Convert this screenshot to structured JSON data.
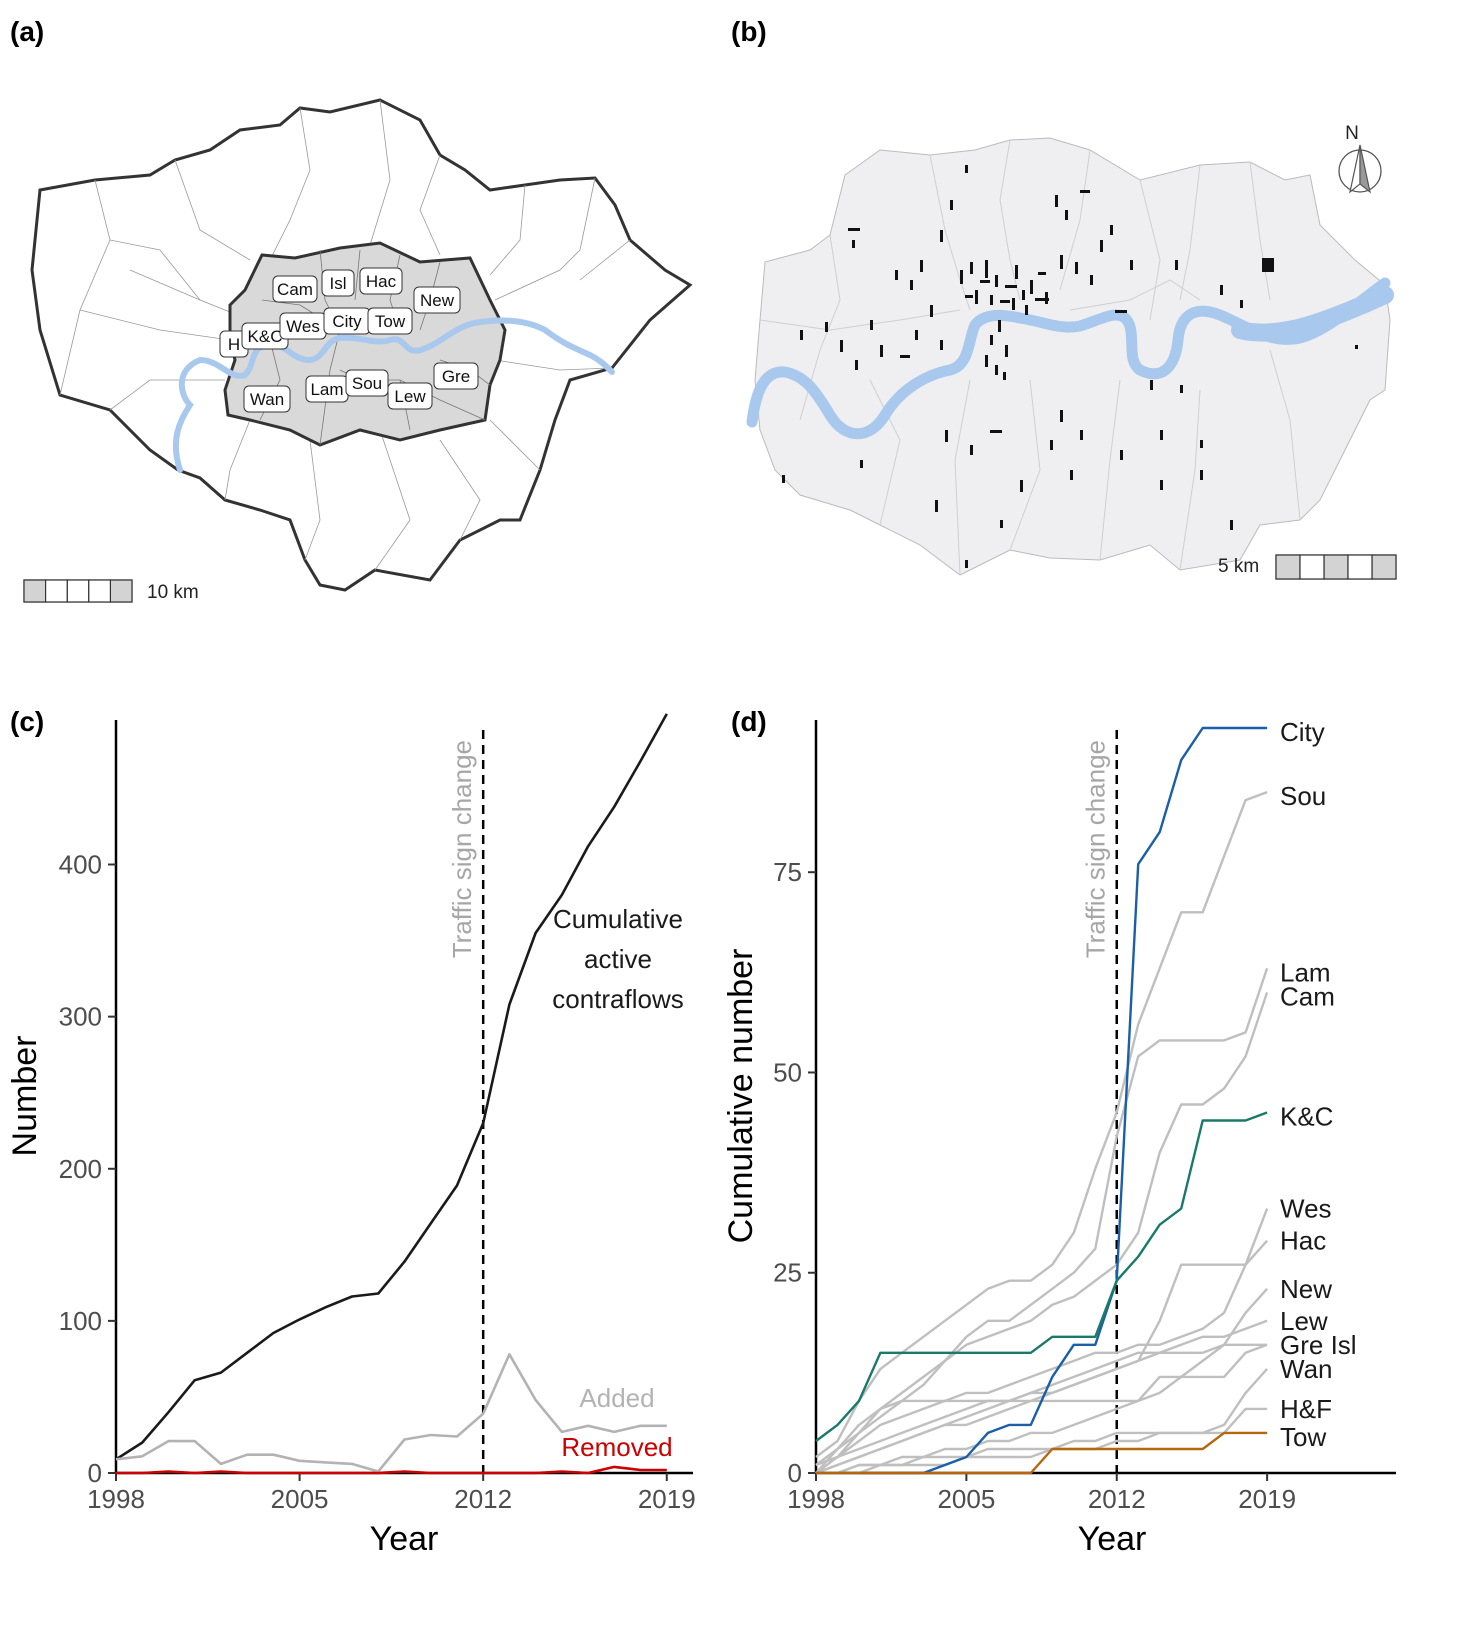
{
  "panels": {
    "a": "(a)",
    "b": "(b)",
    "c": "(c)",
    "d": "(d)"
  },
  "map_a": {
    "borough_labels": [
      "Cam",
      "Isl",
      "Hac",
      "New",
      "K&C",
      "Wes",
      "City",
      "Tow",
      "H",
      "Wan",
      "Lam",
      "Sou",
      "Lew",
      "Gre"
    ],
    "scale_text": "10 km",
    "colors": {
      "inner": "#d9d9d9",
      "outer": "#ffffff",
      "river": "#a9c8ee",
      "border": "#333333"
    }
  },
  "map_b": {
    "north_label": "N",
    "scale_text": "5 km",
    "colors": {
      "land": "#efeff1",
      "river": "#a9c8ee",
      "contraflow": "#111111"
    }
  },
  "chart_data": [
    {
      "type": "line",
      "panel": "c",
      "xlabel": "Year",
      "ylabel": "Number",
      "xlim": [
        1998,
        2020
      ],
      "ylim": [
        0,
        495
      ],
      "xticks": [
        1998,
        2005,
        2012,
        2019
      ],
      "yticks": [
        0,
        100,
        200,
        300,
        400
      ],
      "vline": {
        "x": 2012,
        "label": "Traffic sign change",
        "style": "dashed"
      },
      "series": [
        {
          "name": "Cumulative active contraflows",
          "label_lines": [
            "Cumulative",
            "active",
            "contraflows"
          ],
          "color": "#1a1a1a",
          "x": [
            1998,
            1999,
            2000,
            2001,
            2002,
            2003,
            2004,
            2005,
            2006,
            2007,
            2008,
            2009,
            2010,
            2011,
            2012,
            2013,
            2014,
            2015,
            2016,
            2017,
            2018,
            2019
          ],
          "y": [
            9,
            20,
            40,
            61,
            66,
            79,
            92,
            101,
            109,
            116,
            118,
            139,
            164,
            189,
            230,
            308,
            355,
            380,
            412,
            438,
            468,
            499
          ]
        },
        {
          "name": "Added",
          "color": "#b3b3b3",
          "x": [
            1998,
            1999,
            2000,
            2001,
            2002,
            2003,
            2004,
            2005,
            2006,
            2007,
            2008,
            2009,
            2010,
            2011,
            2012,
            2013,
            2014,
            2015,
            2016,
            2017,
            2018,
            2019
          ],
          "y": [
            9,
            11,
            21,
            21,
            6,
            12,
            12,
            8,
            7,
            6,
            1,
            22,
            25,
            24,
            39,
            78,
            48,
            27,
            31,
            27,
            31,
            31
          ]
        },
        {
          "name": "Removed",
          "color": "#cc0000",
          "x": [
            1998,
            1999,
            2000,
            2001,
            2002,
            2003,
            2004,
            2005,
            2006,
            2007,
            2008,
            2009,
            2010,
            2011,
            2012,
            2013,
            2014,
            2015,
            2016,
            2017,
            2018,
            2019
          ],
          "y": [
            0,
            0,
            1,
            0,
            1,
            0,
            0,
            0,
            0,
            0,
            0,
            1,
            0,
            0,
            0,
            0,
            0,
            1,
            0,
            4,
            2,
            2
          ]
        }
      ]
    },
    {
      "type": "line",
      "panel": "d",
      "xlabel": "Year",
      "ylabel": "Cumulative number",
      "xlim": [
        1998,
        2025
      ],
      "ylim": [
        0,
        94
      ],
      "xticks": [
        1998,
        2005,
        2012,
        2019
      ],
      "yticks": [
        0,
        25,
        50,
        75
      ],
      "vline": {
        "x": 2012,
        "label": "Traffic sign change",
        "style": "dashed"
      },
      "series": [
        {
          "name": "Sou",
          "color": "#bfbfbf",
          "label_y": 84.5,
          "x": [
            1998,
            1999,
            2000,
            2001,
            2002,
            2003,
            2004,
            2005,
            2006,
            2007,
            2008,
            2009,
            2010,
            2011,
            2012,
            2013,
            2014,
            2015,
            2016,
            2017,
            2018,
            2019
          ],
          "y": [
            2,
            4,
            9,
            13,
            15,
            17,
            19,
            21,
            23,
            24,
            24,
            26,
            30,
            38,
            45,
            56,
            63,
            70,
            70,
            77,
            84,
            85
          ]
        },
        {
          "name": "Lam",
          "color": "#bfbfbf",
          "label_y": 62.5,
          "x": [
            1998,
            1999,
            2000,
            2001,
            2002,
            2003,
            2004,
            2005,
            2006,
            2007,
            2008,
            2009,
            2010,
            2011,
            2012,
            2013,
            2014,
            2015,
            2016,
            2017,
            2018,
            2019
          ],
          "y": [
            0,
            2,
            5,
            7,
            9,
            11,
            14,
            17,
            19,
            19,
            21,
            23,
            25,
            28,
            42,
            52,
            54,
            54,
            54,
            54,
            55,
            63
          ]
        },
        {
          "name": "Cam",
          "color": "#bfbfbf",
          "label_y": 59.5,
          "x": [
            1998,
            1999,
            2000,
            2001,
            2002,
            2003,
            2004,
            2005,
            2006,
            2007,
            2008,
            2009,
            2010,
            2011,
            2012,
            2013,
            2014,
            2015,
            2016,
            2017,
            2018,
            2019
          ],
          "y": [
            1,
            3,
            5,
            8,
            10,
            12,
            14,
            16,
            17,
            18,
            19,
            21,
            22,
            24,
            26,
            30,
            40,
            46,
            46,
            48,
            52,
            60
          ]
        },
        {
          "name": "Wes",
          "color": "#bfbfbf",
          "label_y": 33,
          "x": [
            1998,
            1999,
            2000,
            2001,
            2002,
            2003,
            2004,
            2005,
            2006,
            2007,
            2008,
            2009,
            2010,
            2011,
            2012,
            2013,
            2014,
            2015,
            2016,
            2017,
            2018,
            2019
          ],
          "y": [
            1,
            2,
            4,
            6,
            7,
            8,
            9,
            10,
            10,
            11,
            12,
            13,
            14,
            15,
            15,
            16,
            16,
            17,
            18,
            20,
            26,
            33
          ]
        },
        {
          "name": "Hac",
          "color": "#bfbfbf",
          "label_y": 29,
          "x": [
            1998,
            1999,
            2000,
            2001,
            2002,
            2003,
            2004,
            2005,
            2006,
            2007,
            2008,
            2009,
            2010,
            2011,
            2012,
            2013,
            2014,
            2015,
            2016,
            2017,
            2018,
            2019
          ],
          "y": [
            0,
            1,
            2,
            3,
            4,
            5,
            6,
            6,
            7,
            8,
            9,
            10,
            11,
            12,
            13,
            14,
            19,
            26,
            26,
            26,
            26,
            29
          ]
        },
        {
          "name": "New",
          "color": "#bfbfbf",
          "label_y": 23,
          "x": [
            1998,
            1999,
            2000,
            2001,
            2002,
            2003,
            2004,
            2005,
            2006,
            2007,
            2008,
            2009,
            2010,
            2011,
            2012,
            2013,
            2014,
            2015,
            2016,
            2017,
            2018,
            2019
          ],
          "y": [
            0,
            0,
            1,
            1,
            2,
            2,
            3,
            3,
            4,
            4,
            5,
            5,
            6,
            7,
            8,
            9,
            10,
            12,
            14,
            16,
            20,
            23
          ]
        },
        {
          "name": "Lew",
          "color": "#bfbfbf",
          "label_y": 19,
          "x": [
            1998,
            1999,
            2000,
            2001,
            2002,
            2003,
            2004,
            2005,
            2006,
            2007,
            2008,
            2009,
            2010,
            2011,
            2012,
            2013,
            2014,
            2015,
            2016,
            2017,
            2018,
            2019
          ],
          "y": [
            1,
            2,
            3,
            4,
            5,
            6,
            7,
            8,
            9,
            9,
            10,
            10,
            11,
            12,
            13,
            14,
            15,
            16,
            17,
            17,
            18,
            19
          ]
        },
        {
          "name": "Gre",
          "color": "#bfbfbf",
          "label_y": 16,
          "x": [
            1998,
            1999,
            2000,
            2001,
            2002,
            2003,
            2004,
            2005,
            2006,
            2007,
            2008,
            2009,
            2010,
            2011,
            2012,
            2013,
            2014,
            2015,
            2016,
            2017,
            2018,
            2019
          ],
          "y": [
            0,
            1,
            2,
            3,
            4,
            5,
            6,
            7,
            8,
            9,
            10,
            11,
            12,
            13,
            14,
            15,
            15,
            15,
            15,
            16,
            16,
            16
          ]
        },
        {
          "name": "Isl",
          "color": "#bfbfbf",
          "label_y": 16,
          "x": [
            1998,
            1999,
            2000,
            2001,
            2002,
            2003,
            2004,
            2005,
            2006,
            2007,
            2008,
            2009,
            2010,
            2011,
            2012,
            2013,
            2014,
            2015,
            2016,
            2017,
            2018,
            2019
          ],
          "y": [
            0,
            3,
            6,
            8,
            9,
            9,
            9,
            9,
            9,
            9,
            9,
            9,
            9,
            9,
            9,
            9,
            12,
            12,
            12,
            12,
            15,
            16
          ]
        },
        {
          "name": "Wan",
          "color": "#bfbfbf",
          "label_y": 13,
          "x": [
            1998,
            1999,
            2000,
            2001,
            2002,
            2003,
            2004,
            2005,
            2006,
            2007,
            2008,
            2009,
            2010,
            2011,
            2012,
            2013,
            2014,
            2015,
            2016,
            2017,
            2018,
            2019
          ],
          "y": [
            0,
            0,
            1,
            1,
            1,
            2,
            2,
            2,
            3,
            3,
            3,
            3,
            4,
            4,
            5,
            5,
            5,
            5,
            5,
            6,
            10,
            13
          ]
        },
        {
          "name": "H&F",
          "color": "#bfbfbf",
          "label_y": 8,
          "x": [
            1998,
            1999,
            2000,
            2001,
            2002,
            2003,
            2004,
            2005,
            2006,
            2007,
            2008,
            2009,
            2010,
            2011,
            2012,
            2013,
            2014,
            2015,
            2016,
            2017,
            2018,
            2019
          ],
          "y": [
            0,
            0,
            0,
            1,
            1,
            1,
            1,
            2,
            2,
            2,
            2,
            3,
            3,
            3,
            4,
            4,
            5,
            5,
            5,
            5,
            8,
            8
          ]
        },
        {
          "name": "City",
          "color": "#1a5fa8",
          "label_y": 92.5,
          "x": [
            1998,
            1999,
            2000,
            2001,
            2002,
            2003,
            2004,
            2005,
            2006,
            2007,
            2008,
            2009,
            2010,
            2011,
            2012,
            2013,
            2014,
            2015,
            2016,
            2017,
            2018,
            2019
          ],
          "y": [
            0,
            0,
            0,
            0,
            0,
            0,
            1,
            2,
            5,
            6,
            6,
            12,
            16,
            16,
            24,
            76,
            80,
            89,
            93,
            93,
            93,
            93
          ]
        },
        {
          "name": "K&C",
          "color": "#1a7a6a",
          "label_y": 44.5,
          "x": [
            1998,
            1999,
            2000,
            2001,
            2002,
            2003,
            2004,
            2005,
            2006,
            2007,
            2008,
            2009,
            2010,
            2011,
            2012,
            2013,
            2014,
            2015,
            2016,
            2017,
            2018,
            2019
          ],
          "y": [
            4,
            6,
            9,
            15,
            15,
            15,
            15,
            15,
            15,
            15,
            15,
            17,
            17,
            17,
            24,
            27,
            31,
            33,
            44,
            44,
            44,
            45
          ]
        },
        {
          "name": "Tow",
          "color": "#b8650f",
          "label_y": 4.5,
          "x": [
            1998,
            1999,
            2000,
            2001,
            2002,
            2003,
            2004,
            2005,
            2006,
            2007,
            2008,
            2009,
            2010,
            2011,
            2012,
            2013,
            2014,
            2015,
            2016,
            2017,
            2018,
            2019
          ],
          "y": [
            0,
            0,
            0,
            0,
            0,
            0,
            0,
            0,
            0,
            0,
            0,
            3,
            3,
            3,
            3,
            3,
            3,
            3,
            3,
            5,
            5,
            5
          ]
        }
      ],
      "label_overrides": {
        "Gre": "Gre Isl"
      }
    }
  ]
}
